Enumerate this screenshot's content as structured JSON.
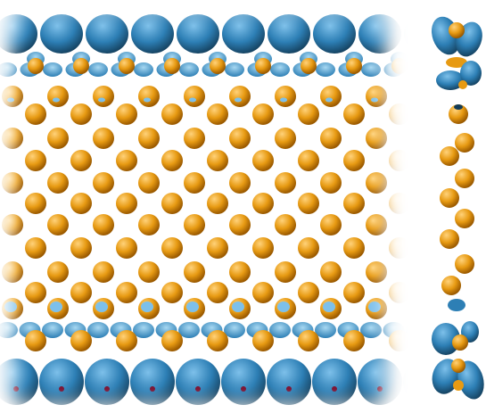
{
  "figure": {
    "panels": [
      {
        "role": "main-slab",
        "bulk_atom_rows": 9,
        "interface_atom_rows_per_side": 2
      },
      {
        "role": "side-chain",
        "atom_count": 9
      }
    ],
    "colors": {
      "background": "#ffffff",
      "gold_atom_light": "#ffd27a",
      "gold_atom": "#e79a12",
      "gold_atom_dark": "#9b5a00",
      "lobe_light": "#7dc0ea",
      "lobe": "#2d7fb5",
      "lobe_dark": "#123b57",
      "interface_glow": "#a7d8f2"
    }
  }
}
